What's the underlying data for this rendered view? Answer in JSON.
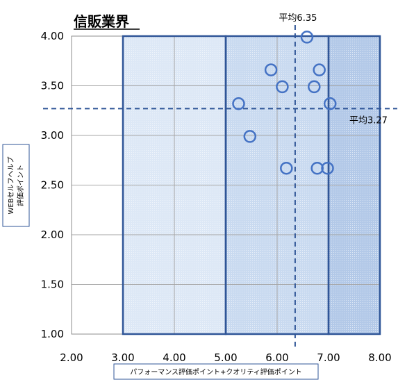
{
  "chart_data": {
    "type": "scatter",
    "title": "信販業界",
    "xlabel": "パフォーマンス評価ポイント+クオリティ評価ポイント",
    "ylabel_lines": [
      "WEBセルフヘルプ",
      "評価ポイント"
    ],
    "xlim": [
      2.0,
      8.0
    ],
    "ylim": [
      1.0,
      4.0
    ],
    "x_ticks": [
      "2.00",
      "3.00",
      "4.00",
      "5.00",
      "6.00",
      "7.00",
      "8.00"
    ],
    "y_ticks": [
      "1.00",
      "1.50",
      "2.00",
      "2.50",
      "3.00",
      "3.50",
      "4.00"
    ],
    "grid": true,
    "series": [
      {
        "points": [
          {
            "x": 6.58,
            "y": 3.99
          },
          {
            "x": 5.88,
            "y": 3.66
          },
          {
            "x": 6.82,
            "y": 3.66
          },
          {
            "x": 6.1,
            "y": 3.49
          },
          {
            "x": 6.72,
            "y": 3.49
          },
          {
            "x": 5.25,
            "y": 3.32
          },
          {
            "x": 7.03,
            "y": 3.32
          },
          {
            "x": 5.47,
            "y": 2.99
          },
          {
            "x": 6.18,
            "y": 2.67
          },
          {
            "x": 6.78,
            "y": 2.67
          },
          {
            "x": 6.98,
            "y": 2.67
          }
        ]
      }
    ],
    "reference_lines": {
      "x_mean": {
        "value": 6.35,
        "label": "平均6.35"
      },
      "y_mean": {
        "value": 3.27,
        "label": "平均3.27"
      }
    },
    "shaded_regions": [
      {
        "x_from": 3.0,
        "x_to": 5.0
      },
      {
        "x_from": 5.0,
        "x_to": 7.0
      },
      {
        "x_from": 7.0,
        "x_to": 8.0
      }
    ],
    "colors": {
      "marker": "#4472c4",
      "mean_line": "#2f5597",
      "region_border": "#2f5597",
      "region_light": "#dde8f6",
      "region_mid": "#c9daf0",
      "region_dark": "#b3c9e8",
      "grid": "#a6a6a6"
    }
  }
}
